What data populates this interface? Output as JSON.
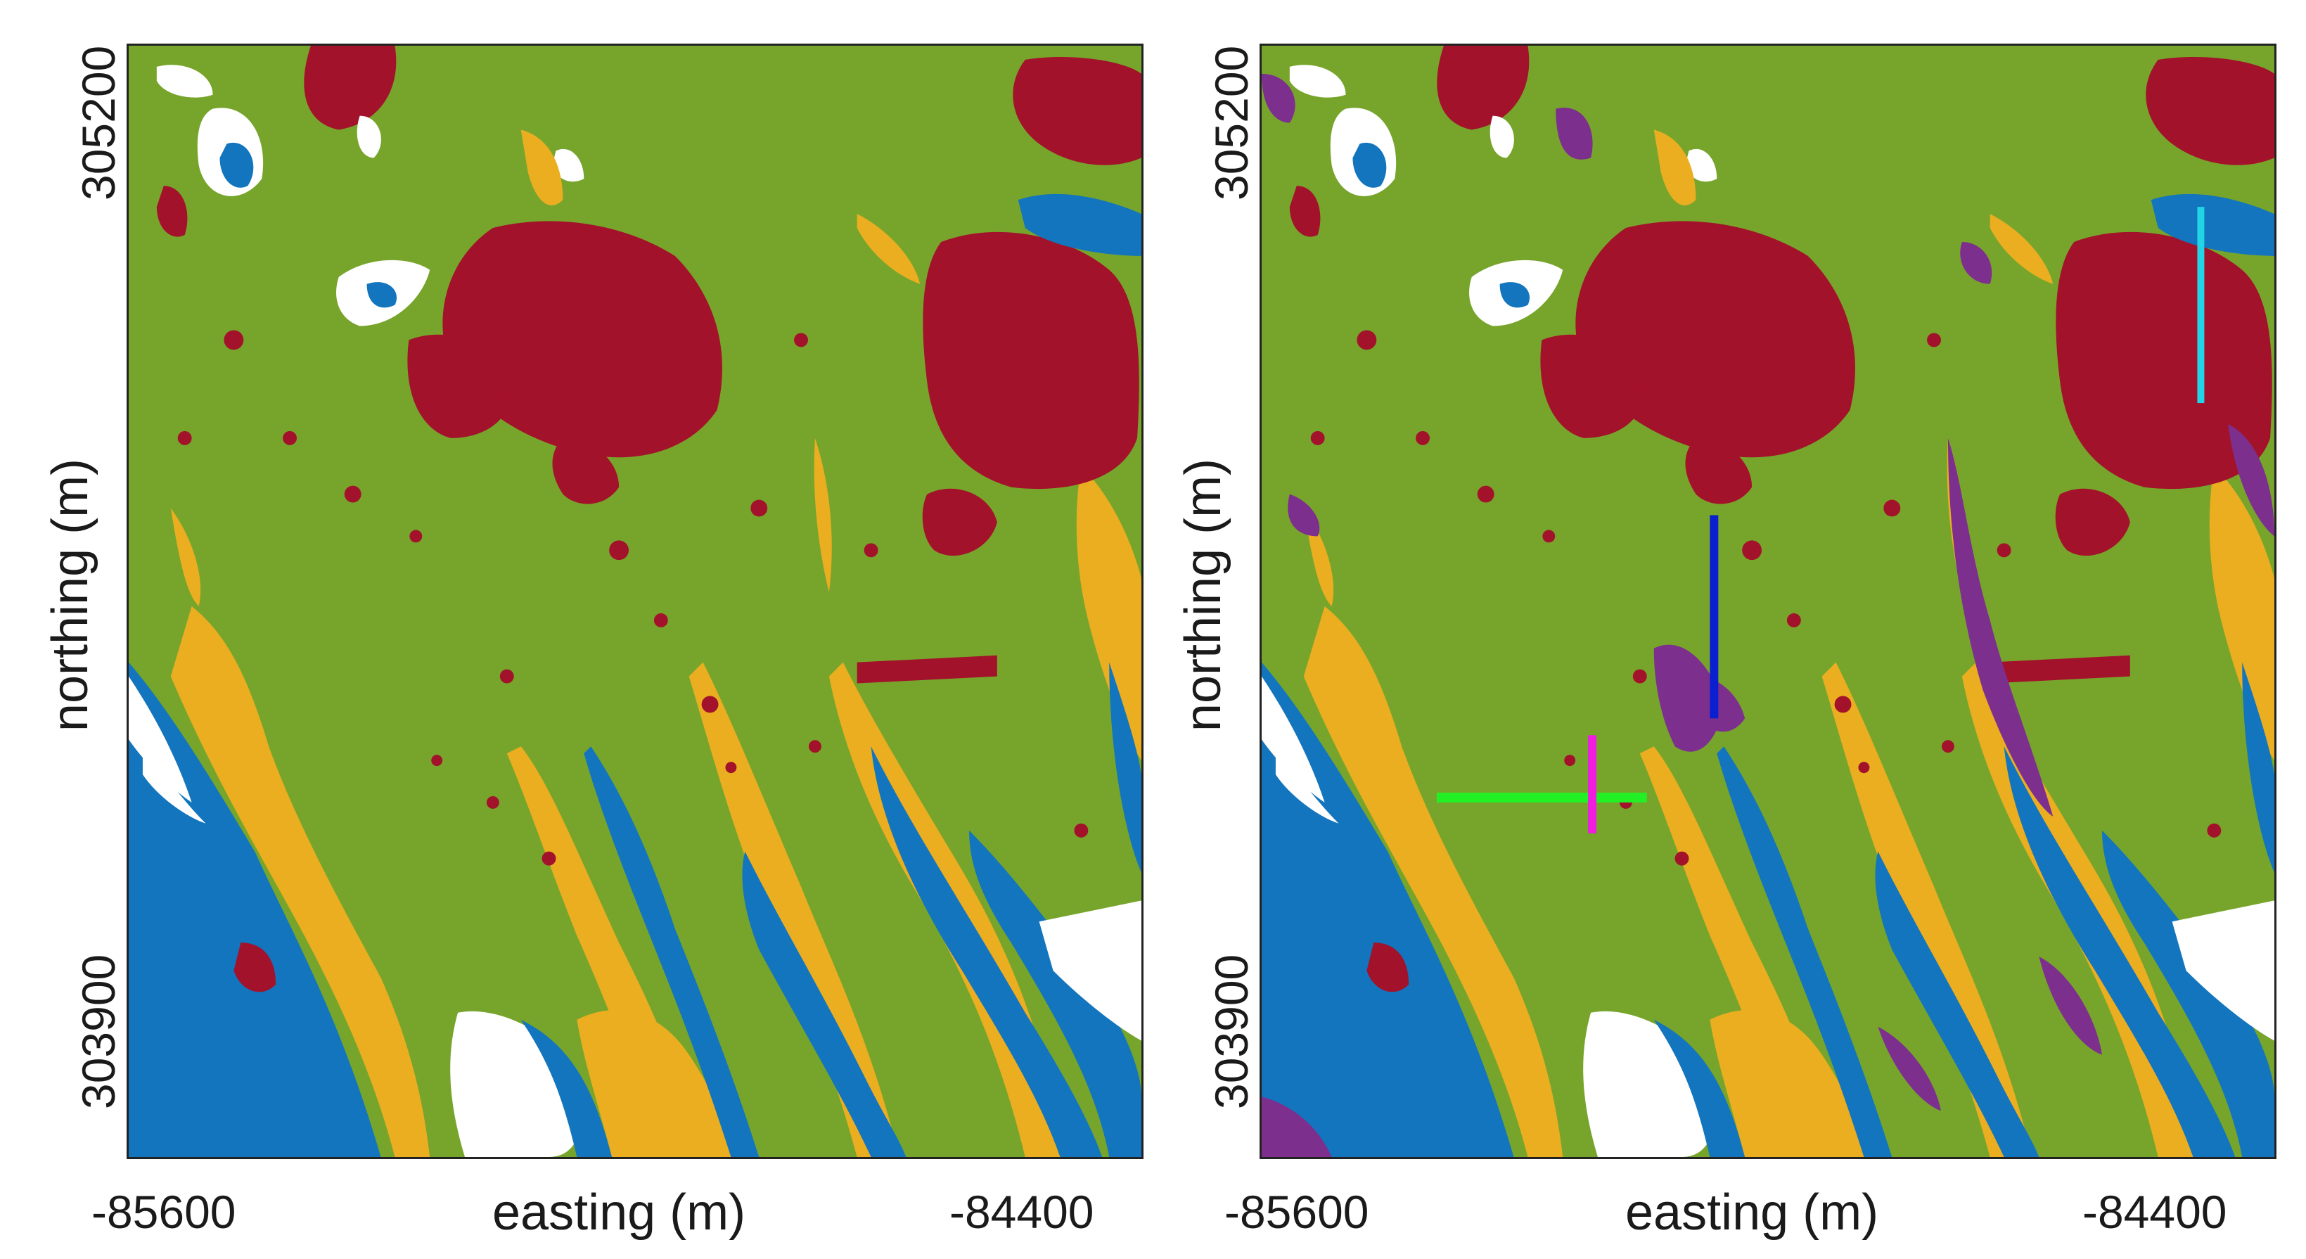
{
  "map": {
    "colors": {
      "vegetation_green": "#77a52c",
      "dark_red": "#a3122b",
      "orange": "#eaae20",
      "blue": "#1275bd",
      "purple": "#7d2f8e",
      "transect_blue": "#0a1fcf",
      "transect_cyan": "#22d4e6",
      "transect_green": "#22f025",
      "transect_magenta": "#f01ce0",
      "nodata_white": "#ffffff"
    },
    "left_panel": {
      "xlabel": "easting (m)",
      "ylabel": "northing (m)",
      "x_ticks": [
        "-85600",
        "-84400"
      ],
      "y_ticks": [
        "305200",
        "303900"
      ]
    },
    "right_panel": {
      "xlabel": "easting (m)",
      "ylabel": "northing (m)",
      "x_ticks": [
        "-85600",
        "-84400"
      ],
      "y_ticks": [
        "305200",
        "303900"
      ],
      "transects": [
        "blue-vertical",
        "cyan-vertical",
        "green-horizontal",
        "magenta-vertical"
      ]
    }
  }
}
